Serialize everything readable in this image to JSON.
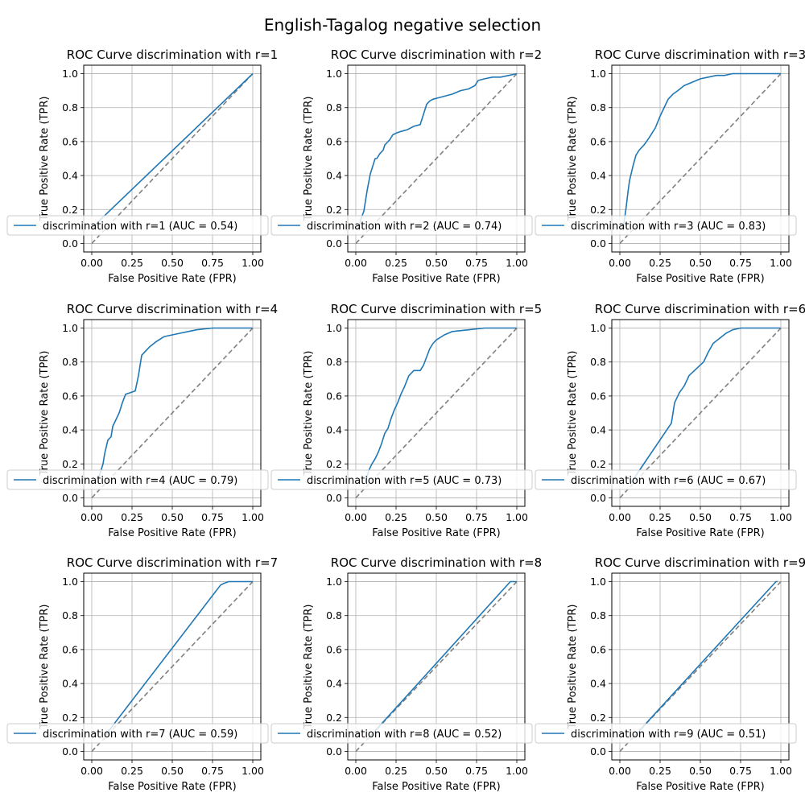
{
  "figure": {
    "suptitle": "English-Tagalog negative selection",
    "colors": {
      "curve": "#1f77b4",
      "diagonal": "#808080",
      "grid": "#b0b0b0",
      "axes": "#000000"
    }
  },
  "chart_data": [
    {
      "type": "line",
      "title": "ROC Curve discrimination with r=1",
      "xlabel": "False Positive Rate (FPR)",
      "ylabel": "True Positive Rate (TPR)",
      "xlim": [
        -0.05,
        1.05
      ],
      "ylim": [
        -0.05,
        1.05
      ],
      "xticks": [
        "0.00",
        "0.25",
        "0.50",
        "0.75",
        "1.00"
      ],
      "yticks": [
        "0.0",
        "0.2",
        "0.4",
        "0.6",
        "0.8",
        "1.0"
      ],
      "grid": true,
      "legend": "lower-left",
      "series": [
        {
          "name": "discrimination with r=1 (AUC = 0.54)",
          "x": [
            0,
            0.02,
            1
          ],
          "y": [
            0.09,
            0.11,
            1
          ]
        }
      ],
      "diagonal": {
        "x": [
          0,
          1
        ],
        "y": [
          0,
          1
        ]
      }
    },
    {
      "type": "line",
      "title": "ROC Curve discrimination with r=2",
      "xlabel": "False Positive Rate (FPR)",
      "ylabel": "True Positive Rate (TPR)",
      "xlim": [
        -0.05,
        1.05
      ],
      "ylim": [
        -0.05,
        1.05
      ],
      "xticks": [
        "0.00",
        "0.25",
        "0.50",
        "0.75",
        "1.00"
      ],
      "yticks": [
        "0.0",
        "0.2",
        "0.4",
        "0.6",
        "0.8",
        "1.0"
      ],
      "grid": true,
      "legend": "lower-left",
      "series": [
        {
          "name": "discrimination with r=2 (AUC = 0.74)",
          "x": [
            0.02,
            0.03,
            0.05,
            0.06,
            0.07,
            0.08,
            0.09,
            0.1,
            0.11,
            0.12,
            0.13,
            0.15,
            0.17,
            0.18,
            0.19,
            0.21,
            0.23,
            0.25,
            0.28,
            0.32,
            0.36,
            0.4,
            0.42,
            0.44,
            0.46,
            0.48,
            0.52,
            0.56,
            0.6,
            0.65,
            0.7,
            0.74,
            0.76,
            0.8,
            0.85,
            0.9,
            0.95,
            1.0
          ],
          "y": [
            0.09,
            0.14,
            0.19,
            0.25,
            0.31,
            0.36,
            0.41,
            0.44,
            0.47,
            0.5,
            0.5,
            0.53,
            0.55,
            0.58,
            0.59,
            0.61,
            0.64,
            0.65,
            0.66,
            0.67,
            0.69,
            0.7,
            0.76,
            0.82,
            0.84,
            0.85,
            0.86,
            0.87,
            0.88,
            0.9,
            0.91,
            0.93,
            0.96,
            0.97,
            0.98,
            0.98,
            0.99,
            1.0
          ]
        }
      ],
      "diagonal": {
        "x": [
          0,
          1
        ],
        "y": [
          0,
          1
        ]
      }
    },
    {
      "type": "line",
      "title": "ROC Curve discrimination with r=3",
      "xlabel": "False Positive Rate (FPR)",
      "ylabel": "True Positive Rate (TPR)",
      "xlim": [
        -0.05,
        1.05
      ],
      "ylim": [
        -0.05,
        1.05
      ],
      "xticks": [
        "0.00",
        "0.25",
        "0.50",
        "0.75",
        "1.00"
      ],
      "yticks": [
        "0.0",
        "0.2",
        "0.4",
        "0.6",
        "0.8",
        "1.0"
      ],
      "grid": true,
      "legend": "lower-left",
      "series": [
        {
          "name": "discrimination with r=3 (AUC = 0.83)",
          "x": [
            0.02,
            0.03,
            0.04,
            0.05,
            0.06,
            0.07,
            0.08,
            0.1,
            0.12,
            0.15,
            0.18,
            0.22,
            0.25,
            0.28,
            0.3,
            0.33,
            0.36,
            0.4,
            0.45,
            0.5,
            0.55,
            0.6,
            0.65,
            0.7,
            0.8,
            0.9,
            1.0
          ],
          "y": [
            0.09,
            0.15,
            0.22,
            0.3,
            0.37,
            0.41,
            0.45,
            0.52,
            0.55,
            0.58,
            0.62,
            0.68,
            0.75,
            0.81,
            0.85,
            0.88,
            0.9,
            0.93,
            0.95,
            0.97,
            0.98,
            0.99,
            0.99,
            1.0,
            1.0,
            1.0,
            1.0
          ]
        }
      ],
      "diagonal": {
        "x": [
          0,
          1
        ],
        "y": [
          0,
          1
        ]
      }
    },
    {
      "type": "line",
      "title": "ROC Curve discrimination with r=4",
      "xlabel": "False Positive Rate (FPR)",
      "ylabel": "True Positive Rate (TPR)",
      "xlim": [
        -0.05,
        1.05
      ],
      "ylim": [
        -0.05,
        1.05
      ],
      "xticks": [
        "0.00",
        "0.25",
        "0.50",
        "0.75",
        "1.00"
      ],
      "yticks": [
        "0.0",
        "0.2",
        "0.4",
        "0.6",
        "0.8",
        "1.0"
      ],
      "grid": true,
      "legend": "lower-left",
      "series": [
        {
          "name": "discrimination with r=4 (AUC = 0.79)",
          "x": [
            0.04,
            0.05,
            0.07,
            0.08,
            0.1,
            0.12,
            0.13,
            0.15,
            0.17,
            0.19,
            0.21,
            0.24,
            0.27,
            0.29,
            0.3,
            0.31,
            0.33,
            0.36,
            0.4,
            0.45,
            0.5,
            0.55,
            0.6,
            0.65,
            0.75,
            0.85,
            1.0
          ],
          "y": [
            0.09,
            0.14,
            0.2,
            0.26,
            0.34,
            0.36,
            0.42,
            0.46,
            0.5,
            0.56,
            0.61,
            0.62,
            0.63,
            0.72,
            0.78,
            0.84,
            0.86,
            0.89,
            0.92,
            0.95,
            0.96,
            0.97,
            0.98,
            0.99,
            1.0,
            1.0,
            1.0
          ]
        }
      ],
      "diagonal": {
        "x": [
          0,
          1
        ],
        "y": [
          0,
          1
        ]
      }
    },
    {
      "type": "line",
      "title": "ROC Curve discrimination with r=5",
      "xlabel": "False Positive Rate (FPR)",
      "ylabel": "True Positive Rate (TPR)",
      "xlim": [
        -0.05,
        1.05
      ],
      "ylim": [
        -0.05,
        1.05
      ],
      "xticks": [
        "0.00",
        "0.25",
        "0.50",
        "0.75",
        "1.00"
      ],
      "yticks": [
        "0.0",
        "0.2",
        "0.4",
        "0.6",
        "0.8",
        "1.0"
      ],
      "grid": true,
      "legend": "lower-left",
      "series": [
        {
          "name": "discrimination with r=5 (AUC = 0.73)",
          "x": [
            0.06,
            0.08,
            0.1,
            0.12,
            0.14,
            0.16,
            0.18,
            0.2,
            0.22,
            0.24,
            0.26,
            0.28,
            0.3,
            0.33,
            0.36,
            0.4,
            0.42,
            0.44,
            0.46,
            0.48,
            0.5,
            0.55,
            0.6,
            0.7,
            0.8,
            0.9,
            1.0
          ],
          "y": [
            0.09,
            0.16,
            0.2,
            0.23,
            0.27,
            0.32,
            0.38,
            0.41,
            0.47,
            0.52,
            0.56,
            0.61,
            0.65,
            0.72,
            0.75,
            0.75,
            0.78,
            0.83,
            0.88,
            0.91,
            0.93,
            0.96,
            0.98,
            0.99,
            1.0,
            1.0,
            1.0
          ]
        }
      ],
      "diagonal": {
        "x": [
          0,
          1
        ],
        "y": [
          0,
          1
        ]
      }
    },
    {
      "type": "line",
      "title": "ROC Curve discrimination with r=6",
      "xlabel": "False Positive Rate (FPR)",
      "ylabel": "True Positive Rate (TPR)",
      "xlim": [
        -0.05,
        1.05
      ],
      "ylim": [
        -0.05,
        1.05
      ],
      "xticks": [
        "0.00",
        "0.25",
        "0.50",
        "0.75",
        "1.00"
      ],
      "yticks": [
        "0.0",
        "0.2",
        "0.4",
        "0.6",
        "0.8",
        "1.0"
      ],
      "grid": true,
      "legend": "lower-left",
      "series": [
        {
          "name": "discrimination with r=6 (AUC = 0.67)",
          "x": [
            0.07,
            0.32,
            0.34,
            0.37,
            0.4,
            0.43,
            0.52,
            0.55,
            0.58,
            0.62,
            0.66,
            0.7,
            0.75,
            0.8,
            0.9,
            1.0
          ],
          "y": [
            0.09,
            0.44,
            0.56,
            0.62,
            0.66,
            0.72,
            0.8,
            0.86,
            0.91,
            0.94,
            0.97,
            0.99,
            1.0,
            1.0,
            1.0,
            1.0
          ]
        }
      ],
      "diagonal": {
        "x": [
          0,
          1
        ],
        "y": [
          0,
          1
        ]
      }
    },
    {
      "type": "line",
      "title": "ROC Curve discrimination with r=7",
      "xlabel": "False Positive Rate (FPR)",
      "ylabel": "True Positive Rate (TPR)",
      "xlim": [
        -0.05,
        1.05
      ],
      "ylim": [
        -0.05,
        1.05
      ],
      "xticks": [
        "0.00",
        "0.25",
        "0.50",
        "0.75",
        "1.00"
      ],
      "yticks": [
        "0.0",
        "0.2",
        "0.4",
        "0.6",
        "0.8",
        "1.0"
      ],
      "grid": true,
      "legend": "lower-left",
      "series": [
        {
          "name": "discrimination with r=7 (AUC = 0.59)",
          "x": [
            0.08,
            0.8,
            0.82,
            0.85,
            0.9,
            1.0
          ],
          "y": [
            0.09,
            0.98,
            0.99,
            1.0,
            1.0,
            1.0
          ]
        }
      ],
      "diagonal": {
        "x": [
          0,
          1
        ],
        "y": [
          0,
          1
        ]
      }
    },
    {
      "type": "line",
      "title": "ROC Curve discrimination with r=8",
      "xlabel": "False Positive Rate (FPR)",
      "ylabel": "True Positive Rate (TPR)",
      "xlim": [
        -0.05,
        1.05
      ],
      "ylim": [
        -0.05,
        1.05
      ],
      "xticks": [
        "0.00",
        "0.25",
        "0.50",
        "0.75",
        "1.00"
      ],
      "yticks": [
        "0.0",
        "0.2",
        "0.4",
        "0.6",
        "0.8",
        "1.0"
      ],
      "grid": true,
      "legend": "lower-left",
      "series": [
        {
          "name": "discrimination with r=8 (AUC = 0.52)",
          "x": [
            0.09,
            0.96,
            1.0
          ],
          "y": [
            0.09,
            1.0,
            1.0
          ]
        }
      ],
      "diagonal": {
        "x": [
          0,
          1
        ],
        "y": [
          0,
          1
        ]
      }
    },
    {
      "type": "line",
      "title": "ROC Curve discrimination with r=9",
      "xlabel": "False Positive Rate (FPR)",
      "ylabel": "True Positive Rate (TPR)",
      "xlim": [
        -0.05,
        1.05
      ],
      "ylim": [
        -0.05,
        1.05
      ],
      "xticks": [
        "0.00",
        "0.25",
        "0.50",
        "0.75",
        "1.00"
      ],
      "yticks": [
        "0.0",
        "0.2",
        "0.4",
        "0.6",
        "0.8",
        "1.0"
      ],
      "grid": true,
      "legend": "lower-left",
      "series": [
        {
          "name": "discrimination with r=9 (AUC = 0.51)",
          "x": [
            0.09,
            0.97,
            0.98
          ],
          "y": [
            0.09,
            1.0,
            1.0
          ]
        }
      ],
      "diagonal": {
        "x": [
          0,
          1
        ],
        "y": [
          0,
          1
        ]
      }
    }
  ]
}
